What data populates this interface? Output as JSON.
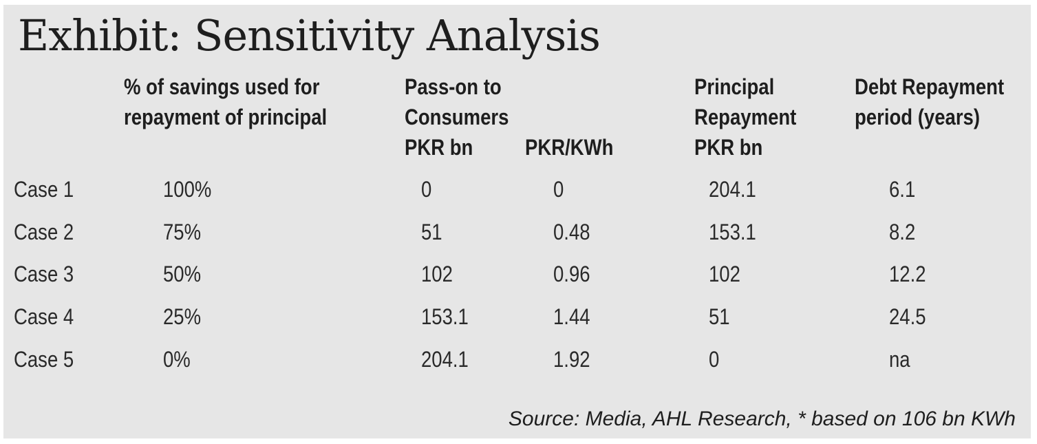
{
  "exhibit": {
    "title": "Exhibit: Sensitivity Analysis",
    "source": "Source: Media, AHL Research, * based on 106 bn KWh"
  },
  "headers": {
    "pct_savings": [
      "% of savings used for",
      "repayment of principal"
    ],
    "pass_on_group": [
      "Pass-on to",
      "Consumers"
    ],
    "pass_on_pkr_bn": "PKR bn",
    "pass_on_pkr_kwh": "PKR/KWh",
    "principal": [
      "Principal",
      "Repayment",
      "PKR bn"
    ],
    "debt_period": [
      "Debt Repayment",
      "period (years)"
    ]
  },
  "rows": [
    {
      "case": "Case 1",
      "pct": "100%",
      "pass_bn": "0",
      "pass_kwh": "0",
      "principal": "204.1",
      "period": "6.1"
    },
    {
      "case": "Case 2",
      "pct": "75%",
      "pass_bn": "51",
      "pass_kwh": "0.48",
      "principal": "153.1",
      "period": "8.2"
    },
    {
      "case": "Case 3",
      "pct": "50%",
      "pass_bn": "102",
      "pass_kwh": "0.96",
      "principal": "102",
      "period": "12.2"
    },
    {
      "case": "Case 4",
      "pct": "25%",
      "pass_bn": "153.1",
      "pass_kwh": "1.44",
      "principal": "51",
      "period": "24.5"
    },
    {
      "case": "Case 5",
      "pct": "0%",
      "pass_bn": "204.1",
      "pass_kwh": "1.92",
      "principal": "0",
      "period": "na"
    }
  ]
}
